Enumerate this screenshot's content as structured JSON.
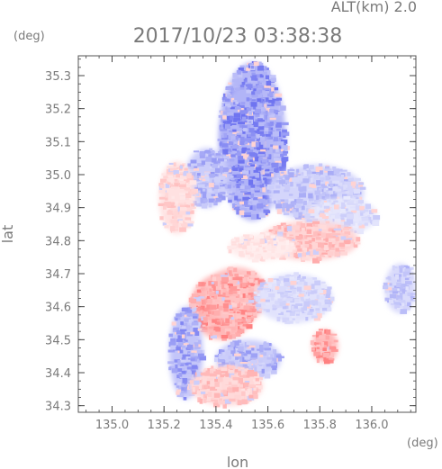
{
  "header": {
    "altitude_label": "ALT(km) 2.0",
    "timestamp": "2017/10/23 03:38:38",
    "y_unit": "(deg)",
    "x_unit": "(deg)"
  },
  "axes": {
    "xlabel": "lon",
    "ylabel": "lat",
    "xlim": [
      134.87,
      136.17
    ],
    "ylim": [
      34.28,
      35.36
    ],
    "xticks": [
      "135.0",
      "135.2",
      "135.4",
      "135.6",
      "135.8",
      "136.0"
    ],
    "yticks": [
      "34.3",
      "34.4",
      "34.5",
      "34.6",
      "34.7",
      "34.8",
      "34.9",
      "35.0",
      "35.1",
      "35.2",
      "35.3"
    ]
  },
  "colors": {
    "frame": "#555555",
    "tick": "#444444",
    "label": "#7a7a7a",
    "approaching": "#6f74f0",
    "receding": "#ff8080",
    "neutral": "#f2f2ff"
  },
  "regions": [
    {
      "name": "north-cell-blue",
      "sign": "approaching",
      "intensity": 0.85,
      "lon": [
        135.41,
        135.67
      ],
      "lat": [
        34.86,
        35.34
      ]
    },
    {
      "name": "north-cell-core",
      "sign": "approaching",
      "intensity": 0.9,
      "lon": [
        135.42,
        135.6
      ],
      "lat": [
        34.95,
        35.28
      ]
    },
    {
      "name": "northwest-patch",
      "sign": "approaching",
      "intensity": 0.6,
      "lon": [
        135.28,
        135.45
      ],
      "lat": [
        34.9,
        35.08
      ]
    },
    {
      "name": "west-pink-band",
      "sign": "receding",
      "intensity": 0.4,
      "lon": [
        135.18,
        135.32
      ],
      "lat": [
        34.82,
        35.04
      ]
    },
    {
      "name": "east-blue-shelf",
      "sign": "approaching",
      "intensity": 0.5,
      "lon": [
        135.6,
        135.97
      ],
      "lat": [
        34.86,
        35.03
      ]
    },
    {
      "name": "east-pale-shelf",
      "sign": "approaching",
      "intensity": 0.3,
      "lon": [
        135.75,
        136.02
      ],
      "lat": [
        34.82,
        34.93
      ]
    },
    {
      "name": "mid-pink-band",
      "sign": "receding",
      "intensity": 0.55,
      "lon": [
        135.57,
        135.95
      ],
      "lat": [
        34.74,
        34.86
      ]
    },
    {
      "name": "mid-pale-band",
      "sign": "receding",
      "intensity": 0.25,
      "lon": [
        135.45,
        135.7
      ],
      "lat": [
        34.74,
        34.82
      ]
    },
    {
      "name": "south-red-core",
      "sign": "receding",
      "intensity": 0.95,
      "lon": [
        135.3,
        135.55
      ],
      "lat": [
        34.5,
        34.7
      ]
    },
    {
      "name": "south-red-tail",
      "sign": "receding",
      "intensity": 0.8,
      "lon": [
        135.36,
        135.6
      ],
      "lat": [
        34.55,
        34.72
      ]
    },
    {
      "name": "south-mixed",
      "sign": "approaching",
      "intensity": 0.35,
      "lon": [
        135.55,
        135.85
      ],
      "lat": [
        34.55,
        34.7
      ]
    },
    {
      "name": "southeast-red-streak",
      "sign": "receding",
      "intensity": 0.9,
      "lon": [
        135.77,
        135.87
      ],
      "lat": [
        34.43,
        34.53
      ]
    },
    {
      "name": "southwest-blue-fringe",
      "sign": "approaching",
      "intensity": 0.7,
      "lon": [
        135.22,
        135.35
      ],
      "lat": [
        34.32,
        34.6
      ]
    },
    {
      "name": "south-blue-fringe",
      "sign": "approaching",
      "intensity": 0.6,
      "lon": [
        135.4,
        135.65
      ],
      "lat": [
        34.38,
        34.5
      ]
    },
    {
      "name": "far-south-scatter",
      "sign": "receding",
      "intensity": 0.5,
      "lon": [
        135.3,
        135.58
      ],
      "lat": [
        34.3,
        34.42
      ]
    },
    {
      "name": "far-east-fragments",
      "sign": "approaching",
      "intensity": 0.45,
      "lon": [
        136.05,
        136.17
      ],
      "lat": [
        34.58,
        34.73
      ]
    }
  ]
}
